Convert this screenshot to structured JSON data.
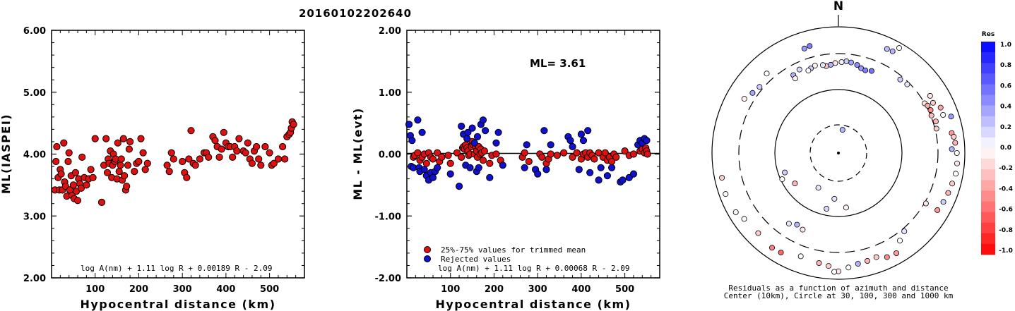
{
  "title": "20160102202640",
  "colors": {
    "accepted": "#e01010",
    "rejected": "#1010d0",
    "positive": "#0000ff",
    "negative": "#ff0000"
  },
  "chart_data": [
    {
      "type": "scatter",
      "xlabel": "Hypocentral distance (km)",
      "ylabel": "ML(IASPEI)",
      "xlim": [
        0,
        580
      ],
      "ylim": [
        2.0,
        6.0
      ],
      "xticks": [
        "100",
        "200",
        "300",
        "400",
        "500"
      ],
      "yticks": [
        "2.00",
        "3.00",
        "4.00",
        "5.00",
        "6.00"
      ],
      "annotation": "log A(nm) + 1.11 log R + 0.00189 R - 2.09",
      "series": [
        {
          "x": [
            8,
            10,
            12,
            15,
            18,
            20,
            22,
            25,
            28,
            30,
            32,
            35,
            38,
            40,
            42,
            45,
            47,
            50,
            52,
            55,
            57,
            60,
            62,
            65,
            68,
            70,
            75,
            80,
            85,
            90,
            95,
            100,
            115,
            120,
            125,
            128,
            130,
            132,
            135,
            138,
            140,
            142,
            145,
            147,
            150,
            152,
            155,
            158,
            160,
            162,
            165,
            167,
            170,
            172,
            175,
            178,
            180,
            190,
            195,
            200,
            205,
            210,
            215,
            220,
            265,
            270,
            275,
            280,
            300,
            305,
            310,
            315,
            320,
            325,
            330,
            340,
            350,
            355,
            360,
            370,
            375,
            380,
            385,
            390,
            395,
            400,
            405,
            410,
            415,
            420,
            425,
            430,
            440,
            445,
            450,
            455,
            460,
            465,
            470,
            475,
            480,
            490,
            500,
            505,
            510,
            520,
            530,
            535,
            540,
            545,
            548,
            550,
            552,
            555
          ],
          "y": [
            3.42,
            3.88,
            4.12,
            3.62,
            3.42,
            3.75,
            3.68,
            3.42,
            4.18,
            3.55,
            3.48,
            3.32,
            3.88,
            4.02,
            3.42,
            3.65,
            3.33,
            3.5,
            3.28,
            3.7,
            3.4,
            3.25,
            3.6,
            3.52,
            3.45,
            3.95,
            3.62,
            3.5,
            3.6,
            3.75,
            3.62,
            4.25,
            3.22,
            3.82,
            4.25,
            3.7,
            3.92,
            3.85,
            4.05,
            3.62,
            3.82,
            4.0,
            3.88,
            3.92,
            3.6,
            4.18,
            3.72,
            3.82,
            3.92,
            3.58,
            4.25,
            3.65,
            3.42,
            3.48,
            3.82,
            4.08,
            4.2,
            3.72,
            3.85,
            3.88,
            4.25,
            4.02,
            3.75,
            3.85,
            3.82,
            3.72,
            4.02,
            3.92,
            3.88,
            3.7,
            3.62,
            3.92,
            4.38,
            3.85,
            3.82,
            3.92,
            4.02,
            4.02,
            3.95,
            4.28,
            4.22,
            4.12,
            3.95,
            4.08,
            4.35,
            4.18,
            4.12,
            4.12,
            3.95,
            4.12,
            4.05,
            4.25,
            4.05,
            4.02,
            4.18,
            3.92,
            3.85,
            4.05,
            4.12,
            3.92,
            3.82,
            4.12,
            4.02,
            3.82,
            3.85,
            3.92,
            4.12,
            3.92,
            4.28,
            4.32,
            4.35,
            4.42,
            4.52,
            4.48
          ]
        }
      ]
    },
    {
      "type": "scatter",
      "xlabel": "Hypocentral distance (km)",
      "ylabel": "ML - ML(evt)",
      "xlim": [
        0,
        580
      ],
      "ylim": [
        -2.0,
        2.0
      ],
      "xticks": [
        "100",
        "200",
        "300",
        "400",
        "500"
      ],
      "yticks": [
        "-2.00",
        "-1.00",
        "0.00",
        "1.00",
        "2.00"
      ],
      "ml_text": "ML= 3.61",
      "annotation": "log A(nm) + 1.11 log R + 0.00068 R - 2.09",
      "legend": [
        "25%-75% values for trimmed mean",
        "Rejected values"
      ],
      "series": [
        {
          "name": "25%-75% values for trimmed mean",
          "x": [
            15,
            18,
            25,
            30,
            35,
            40,
            45,
            50,
            55,
            60,
            70,
            75,
            80,
            95,
            100,
            115,
            125,
            128,
            130,
            132,
            135,
            138,
            140,
            142,
            145,
            148,
            150,
            152,
            155,
            158,
            160,
            162,
            165,
            168,
            170,
            172,
            175,
            178,
            190,
            195,
            205,
            215,
            265,
            270,
            280,
            305,
            310,
            320,
            325,
            330,
            345,
            360,
            380,
            390,
            400,
            405,
            410,
            415,
            420,
            425,
            430,
            440,
            450,
            455,
            460,
            465,
            470,
            475,
            480,
            500,
            510,
            520,
            535,
            540,
            545,
            548,
            550,
            552
          ],
          "y": [
            -0.05,
            -0.02,
            0.02,
            -0.1,
            -0.05,
            0.0,
            -0.15,
            0.02,
            -0.05,
            -0.08,
            0.02,
            -0.12,
            -0.05,
            -0.02,
            -0.15,
            0.02,
            -0.05,
            0.1,
            0.12,
            0.08,
            0.15,
            0.1,
            0.05,
            -0.02,
            0.0,
            0.12,
            0.2,
            0.15,
            0.0,
            0.12,
            0.05,
            -0.05,
            0.12,
            0.0,
            0.08,
            0.02,
            -0.1,
            0.05,
            -0.15,
            -0.02,
            0.0,
            -0.1,
            -0.05,
            0.02,
            -0.12,
            0.0,
            -0.05,
            -0.15,
            -0.08,
            0.0,
            -0.02,
            0.02,
            -0.05,
            0.02,
            -0.08,
            0.0,
            0.02,
            -0.05,
            0.02,
            -0.02,
            -0.08,
            0.02,
            -0.05,
            0.02,
            -0.1,
            -0.05,
            -0.12,
            0.0,
            -0.05,
            0.05,
            -0.02,
            0.0,
            0.05,
            0.08,
            0.02,
            0.1,
            0.05,
            0.0
          ]
        },
        {
          "name": "Rejected values",
          "x": [
            5,
            8,
            10,
            12,
            15,
            25,
            28,
            30,
            35,
            40,
            45,
            50,
            55,
            60,
            65,
            70,
            100,
            120,
            125,
            130,
            135,
            138,
            140,
            145,
            150,
            155,
            160,
            162,
            165,
            170,
            175,
            180,
            190,
            205,
            210,
            220,
            270,
            275,
            295,
            300,
            315,
            320,
            330,
            370,
            375,
            380,
            395,
            400,
            405,
            415,
            420,
            440,
            445,
            460,
            470,
            490,
            495,
            510,
            520,
            530,
            535,
            540,
            545,
            550
          ],
          "y": [
            0.48,
            0.3,
            -0.2,
            0.22,
            -0.22,
            0.55,
            -0.22,
            -0.28,
            0.35,
            -0.25,
            -0.35,
            -0.42,
            -0.3,
            -0.38,
            -0.28,
            -0.22,
            -0.32,
            -0.52,
            0.45,
            0.32,
            -0.18,
            0.25,
            0.35,
            -0.22,
            0.42,
            0.18,
            -0.28,
            0.28,
            -0.22,
            0.48,
            0.55,
            0.38,
            -0.38,
            0.18,
            0.35,
            -0.18,
            -0.22,
            0.15,
            -0.25,
            -0.32,
            0.38,
            -0.25,
            0.15,
            0.28,
            0.22,
            0.12,
            -0.25,
            0.32,
            0.22,
            0.38,
            -0.3,
            -0.42,
            -0.22,
            -0.35,
            -0.22,
            -0.45,
            -0.42,
            -0.38,
            -0.32,
            0.15,
            0.22,
            0.18,
            0.25,
            0.22
          ]
        }
      ]
    },
    {
      "type": "polar scatter",
      "north_label": "N",
      "caption_line1": "Residuals as a function of azimuth and distance",
      "caption_line2": "Center (10km), Circle at 30, 100, 300 and 1000 km",
      "colorbar": {
        "title": "Res",
        "labels": [
          "1.0",
          "0.8",
          "0.6",
          "0.4",
          "0.2",
          "0.0",
          "-0.2",
          "-0.4",
          "-0.6",
          "-0.8",
          "-1.0"
        ],
        "range": [
          -1.0,
          1.0
        ]
      },
      "points": [
        {
          "az": 210,
          "dist": 45,
          "res": 0.1
        },
        {
          "az": 185,
          "dist": 55,
          "res": 0.1
        },
        {
          "az": 172,
          "dist": 75,
          "res": -0.05
        },
        {
          "az": 192,
          "dist": 80,
          "res": 0.15
        },
        {
          "az": 10,
          "dist": 25,
          "res": 0.3
        },
        {
          "az": 15,
          "dist": 210,
          "res": 0.4
        },
        {
          "az": 12,
          "dist": 225,
          "res": 0.45
        },
        {
          "az": 8,
          "dist": 235,
          "res": 0.35
        },
        {
          "az": 5,
          "dist": 240,
          "res": 0.2
        },
        {
          "az": 2,
          "dist": 232,
          "res": 0.05
        },
        {
          "az": 358,
          "dist": 225,
          "res": -0.1
        },
        {
          "az": 355,
          "dist": 215,
          "res": 0.3
        },
        {
          "az": 352,
          "dist": 210,
          "res": -0.25
        },
        {
          "az": 350,
          "dist": 220,
          "res": 0.1
        },
        {
          "az": 345,
          "dist": 228,
          "res": -0.05
        },
        {
          "az": 342,
          "dist": 218,
          "res": 0.2
        },
        {
          "az": 340,
          "dist": 210,
          "res": 0.0
        },
        {
          "az": 18,
          "dist": 205,
          "res": 0.5
        },
        {
          "az": 22,
          "dist": 215,
          "res": 0.55
        },
        {
          "az": 335,
          "dist": 240,
          "res": 0.15
        },
        {
          "az": 330,
          "dist": 225,
          "res": 0.3
        },
        {
          "az": 330,
          "dist": 200,
          "res": -0.05
        },
        {
          "az": 345,
          "dist": 500,
          "res": 0.5
        },
        {
          "az": 342,
          "dist": 480,
          "res": 0.4
        },
        {
          "az": 25,
          "dist": 600,
          "res": 0.25
        },
        {
          "az": 28,
          "dist": 610,
          "res": 0.3
        },
        {
          "az": 40,
          "dist": 270,
          "res": 0.2
        },
        {
          "az": 45,
          "dist": 280,
          "res": 0.1
        },
        {
          "az": 30,
          "dist": 800,
          "res": 0.0
        },
        {
          "az": 62,
          "dist": 420,
          "res": -0.2
        },
        {
          "az": 58,
          "dist": 440,
          "res": -0.1
        },
        {
          "az": 66,
          "dist": 520,
          "res": -0.35
        },
        {
          "az": 70,
          "dist": 510,
          "res": 0.0
        },
        {
          "az": 72,
          "dist": 700,
          "res": 0.4
        },
        {
          "az": 80,
          "dist": 600,
          "res": -0.4
        },
        {
          "az": 82,
          "dist": 640,
          "res": -0.2
        },
        {
          "az": 85,
          "dist": 660,
          "res": -0.3
        },
        {
          "az": 88,
          "dist": 560,
          "res": 0.3
        },
        {
          "az": 90,
          "dist": 700,
          "res": 0.0
        },
        {
          "az": 95,
          "dist": 720,
          "res": -0.1
        },
        {
          "az": 100,
          "dist": 720,
          "res": 0.0
        },
        {
          "az": 105,
          "dist": 680,
          "res": -0.2
        },
        {
          "az": 110,
          "dist": 650,
          "res": -0.3
        },
        {
          "az": 115,
          "dist": 620,
          "res": 0.2
        },
        {
          "az": 120,
          "dist": 580,
          "res": -0.4
        },
        {
          "az": 60,
          "dist": 300,
          "res": -0.1
        },
        {
          "az": 62,
          "dist": 320,
          "res": -0.35
        },
        {
          "az": 65,
          "dist": 330,
          "res": -0.45
        },
        {
          "az": 68,
          "dist": 310,
          "res": -0.25
        },
        {
          "az": 72,
          "dist": 340,
          "res": -0.3
        },
        {
          "az": 76,
          "dist": 320,
          "res": -0.2
        },
        {
          "az": 120,
          "dist": 320,
          "res": -0.1
        },
        {
          "az": 140,
          "dist": 340,
          "res": 0.1
        },
        {
          "az": 145,
          "dist": 420,
          "res": 0.0
        },
        {
          "az": 160,
          "dist": 500,
          "res": -0.2
        },
        {
          "az": 165,
          "dist": 520,
          "res": -0.3
        },
        {
          "az": 170,
          "dist": 540,
          "res": 0.3
        },
        {
          "az": 175,
          "dist": 600,
          "res": 0.0
        },
        {
          "az": 180,
          "dist": 700,
          "res": -0.1
        },
        {
          "az": 182,
          "dist": 720,
          "res": 0.0
        },
        {
          "az": 185,
          "dist": 560,
          "res": -0.2
        },
        {
          "az": 190,
          "dist": 520,
          "res": -0.3
        },
        {
          "az": 150,
          "dist": 620,
          "res": -0.4
        },
        {
          "az": 155,
          "dist": 600,
          "res": -0.45
        },
        {
          "az": 200,
          "dist": 480,
          "res": 0.0
        },
        {
          "az": 210,
          "dist": 600,
          "res": -0.6
        },
        {
          "az": 215,
          "dist": 620,
          "res": -0.5
        },
        {
          "az": 225,
          "dist": 560,
          "res": -0.2
        },
        {
          "az": 235,
          "dist": 600,
          "res": 0.0
        },
        {
          "az": 240,
          "dist": 700,
          "res": 0.0
        },
        {
          "az": 250,
          "dist": 750,
          "res": 0.0
        },
        {
          "az": 258,
          "dist": 720,
          "res": -0.2
        },
        {
          "az": 215,
          "dist": 200,
          "res": 0.1
        },
        {
          "az": 210,
          "dist": 180,
          "res": 0.3
        },
        {
          "az": 205,
          "dist": 190,
          "res": -0.1
        },
        {
          "az": 245,
          "dist": 95,
          "res": 0.0
        },
        {
          "az": 250,
          "dist": 80,
          "res": 0.2
        },
        {
          "az": 235,
          "dist": 70,
          "res": -0.3
        },
        {
          "az": 300,
          "dist": 450,
          "res": -0.05
        },
        {
          "az": 305,
          "dist": 380,
          "res": 0.35
        },
        {
          "az": 310,
          "dist": 350,
          "res": 0.2
        },
        {
          "az": 318,
          "dist": 420,
          "res": 0.0
        }
      ]
    }
  ]
}
